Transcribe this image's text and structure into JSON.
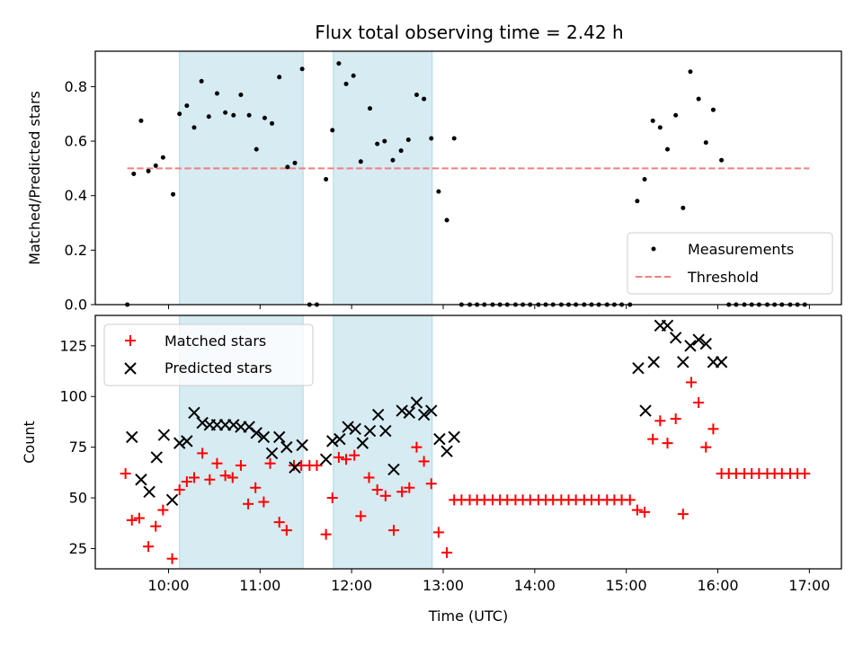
{
  "chart_data": {
    "title": "Flux total observing time = 2.42 h",
    "xlabel": "Time (UTC)",
    "x_unit": "hours (UTC)",
    "xlim": [
      9.2,
      17.35
    ],
    "x_ticks": [
      {
        "value": 10,
        "label": "10:00"
      },
      {
        "value": 11,
        "label": "11:00"
      },
      {
        "value": 12,
        "label": "12:00"
      },
      {
        "value": 13,
        "label": "13:00"
      },
      {
        "value": 14,
        "label": "14:00"
      },
      {
        "value": 15,
        "label": "15:00"
      },
      {
        "value": 16,
        "label": "16:00"
      },
      {
        "value": 17,
        "label": "17:00"
      }
    ],
    "shaded_intervals": [
      {
        "start": 10.12,
        "end": 11.47
      },
      {
        "start": 11.8,
        "end": 12.88
      }
    ],
    "panels": [
      {
        "type": "scatter",
        "ylabel": "Matched/Predicted stars",
        "ylim": [
          0,
          0.93
        ],
        "y_ticks": [
          {
            "value": 0,
            "label": "0.0"
          },
          {
            "value": 0.2,
            "label": "0.2"
          },
          {
            "value": 0.4,
            "label": "0.4"
          },
          {
            "value": 0.6,
            "label": "0.6"
          },
          {
            "value": 0.8,
            "label": "0.8"
          }
        ],
        "legend": {
          "position": "lower-right",
          "entries": [
            "Measurements",
            "Threshold"
          ]
        },
        "threshold": {
          "name": "Threshold",
          "value": 0.5,
          "x_range": [
            9.55,
            17.0
          ],
          "color": "#f08080"
        },
        "series": [
          {
            "name": "Measurements",
            "marker": "dot",
            "color": "#000000",
            "x": [
              9.55,
              9.62,
              9.7,
              9.78,
              9.86,
              9.94,
              10.05,
              10.12,
              10.2,
              10.28,
              10.36,
              10.44,
              10.53,
              10.62,
              10.71,
              10.79,
              10.88,
              10.96,
              11.05,
              11.13,
              11.21,
              11.3,
              11.38,
              11.46,
              11.54,
              11.62,
              11.72,
              11.79,
              11.86,
              11.94,
              12.02,
              12.1,
              12.2,
              12.28,
              12.36,
              12.45,
              12.54,
              12.62,
              12.71,
              12.79,
              12.87,
              12.95,
              13.04,
              13.12,
              13.2,
              13.29,
              13.37,
              13.45,
              13.54,
              13.62,
              13.7,
              13.79,
              13.87,
              13.95,
              14.04,
              14.12,
              14.2,
              14.29,
              14.37,
              14.45,
              14.54,
              14.62,
              14.7,
              14.79,
              14.87,
              14.95,
              15.04,
              15.12,
              15.2,
              15.29,
              15.37,
              15.45,
              15.54,
              15.62,
              15.7,
              15.79,
              15.87,
              15.95,
              16.04,
              16.12,
              16.2,
              16.29,
              16.37,
              16.45,
              16.54,
              16.62,
              16.7,
              16.79,
              16.87,
              16.95
            ],
            "y": [
              0.0,
              0.48,
              0.675,
              0.49,
              0.51,
              0.54,
              0.405,
              0.7,
              0.73,
              0.65,
              0.82,
              0.69,
              0.775,
              0.705,
              0.695,
              0.77,
              0.695,
              0.57,
              0.685,
              0.665,
              0.835,
              0.505,
              0.52,
              0.865,
              0.0,
              0.0,
              0.46,
              0.64,
              0.885,
              0.81,
              0.84,
              0.525,
              0.72,
              0.59,
              0.6,
              0.53,
              0.565,
              0.605,
              0.77,
              0.755,
              0.61,
              0.415,
              0.31,
              0.61,
              0.0,
              0.0,
              0.0,
              0.0,
              0.0,
              0.0,
              0.0,
              0.0,
              0.0,
              0.0,
              0.0,
              0.0,
              0.0,
              0.0,
              0.0,
              0.0,
              0.0,
              0.0,
              0.0,
              0.0,
              0.0,
              0.0,
              0.0,
              0.38,
              0.46,
              0.675,
              0.65,
              0.57,
              0.695,
              0.355,
              0.855,
              0.755,
              0.595,
              0.715,
              0.53,
              0.0,
              0.0,
              0.0,
              0.0,
              0.0,
              0.0,
              0.0,
              0.0,
              0.0,
              0.0,
              0.0
            ]
          }
        ]
      },
      {
        "type": "scatter",
        "ylabel": "Count",
        "ylim": [
          15,
          140
        ],
        "y_ticks": [
          {
            "value": 25,
            "label": "25"
          },
          {
            "value": 50,
            "label": "50"
          },
          {
            "value": 75,
            "label": "75"
          },
          {
            "value": 100,
            "label": "100"
          },
          {
            "value": 125,
            "label": "125"
          }
        ],
        "legend": {
          "position": "upper-left",
          "entries": [
            "Matched stars",
            "Predicted stars"
          ]
        },
        "series": [
          {
            "name": "Matched stars",
            "marker": "plus",
            "color": "#ff0000",
            "x": [
              9.53,
              9.6,
              9.68,
              9.78,
              9.86,
              9.94,
              10.04,
              10.12,
              10.2,
              10.28,
              10.37,
              10.45,
              10.53,
              10.62,
              10.7,
              10.79,
              10.87,
              10.95,
              11.04,
              11.11,
              11.21,
              11.29,
              11.37,
              11.45,
              11.54,
              11.62,
              11.72,
              11.79,
              11.86,
              11.94,
              12.03,
              12.1,
              12.19,
              12.28,
              12.37,
              12.46,
              12.55,
              12.63,
              12.71,
              12.79,
              12.87,
              12.95,
              13.04,
              13.12,
              13.2,
              13.29,
              13.37,
              13.45,
              13.54,
              13.62,
              13.7,
              13.79,
              13.87,
              13.95,
              14.04,
              14.12,
              14.2,
              14.29,
              14.37,
              14.45,
              14.54,
              14.62,
              14.7,
              14.79,
              14.87,
              14.95,
              15.04,
              15.12,
              15.2,
              15.29,
              15.37,
              15.45,
              15.54,
              15.62,
              15.71,
              15.79,
              15.87,
              15.95,
              16.04,
              16.12,
              16.2,
              16.29,
              16.37,
              16.45,
              16.54,
              16.62,
              16.7,
              16.79,
              16.87,
              16.95
            ],
            "y": [
              62,
              39,
              40,
              26,
              36,
              44,
              20,
              54,
              58,
              60,
              72,
              59,
              67,
              61,
              60,
              66,
              47,
              55,
              48,
              67,
              38,
              34,
              66,
              66,
              66,
              66,
              32,
              50,
              70,
              69,
              71,
              41,
              60,
              54,
              51,
              34,
              53,
              55,
              75,
              68,
              57,
              33,
              23,
              49,
              49,
              49,
              49,
              49,
              49,
              49,
              49,
              49,
              49,
              49,
              49,
              49,
              49,
              49,
              49,
              49,
              49,
              49,
              49,
              49,
              49,
              49,
              49,
              44,
              43,
              79,
              88,
              77,
              89,
              42,
              107,
              97,
              75,
              84,
              62,
              62,
              62,
              62,
              62,
              62,
              62,
              62,
              62,
              62,
              62,
              62
            ]
          },
          {
            "name": "Predicted stars",
            "marker": "x",
            "color": "#000000",
            "x": [
              9.6,
              9.7,
              9.79,
              9.87,
              9.95,
              10.04,
              10.12,
              10.2,
              10.28,
              10.37,
              10.45,
              10.53,
              10.62,
              10.71,
              10.79,
              10.88,
              10.96,
              11.04,
              11.13,
              11.21,
              11.29,
              11.38,
              11.46,
              11.72,
              11.79,
              11.87,
              11.96,
              12.04,
              12.12,
              12.2,
              12.29,
              12.37,
              12.46,
              12.55,
              12.63,
              12.71,
              12.79,
              12.87,
              12.96,
              13.04,
              13.12,
              15.13,
              15.21,
              15.3,
              15.37,
              15.45,
              15.54,
              15.62,
              15.7,
              15.79,
              15.87,
              15.95,
              16.04
            ],
            "y": [
              80,
              59,
              53,
              70,
              81,
              49,
              77,
              78,
              92,
              87,
              86,
              86,
              86,
              86,
              85,
              85,
              82,
              80,
              72,
              80,
              75,
              65,
              76,
              69,
              78,
              79,
              85,
              84,
              77,
              83,
              91,
              83,
              64,
              93,
              92,
              97,
              91,
              93,
              79,
              73,
              80,
              114,
              93,
              117,
              135,
              135,
              129,
              117,
              125,
              128,
              126,
              117,
              117
            ]
          }
        ]
      }
    ]
  }
}
